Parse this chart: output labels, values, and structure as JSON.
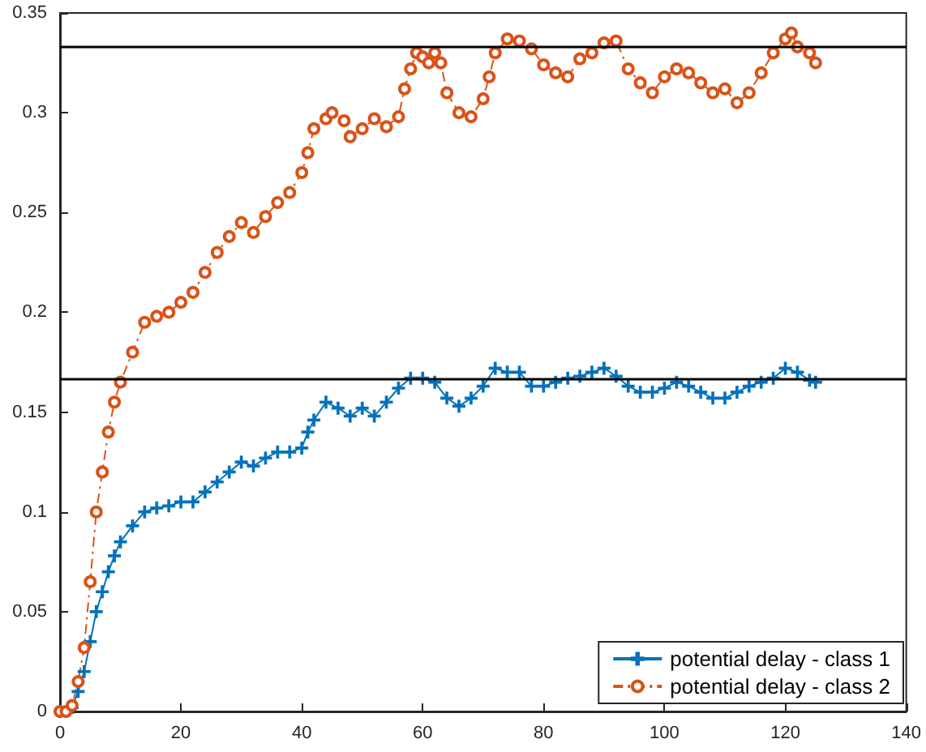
{
  "chart_data": {
    "type": "line",
    "xlim": [
      0,
      140
    ],
    "xticks": [
      0,
      20,
      40,
      60,
      80,
      100,
      120,
      140
    ],
    "ylim": [
      0,
      0.35
    ],
    "yticks": [
      0,
      0.05,
      0.1,
      0.15,
      0.2,
      0.25,
      0.3,
      0.35
    ],
    "grid": false,
    "legend": "bottom right",
    "series": [
      {
        "name": "potential delay - class 1",
        "color": "#0072bd",
        "marker": "cross",
        "line_style": "solid",
        "x": [
          0,
          2,
          3,
          4,
          5,
          6,
          7,
          8,
          9,
          10,
          12,
          14,
          16,
          18,
          20,
          22,
          24,
          26,
          28,
          30,
          32,
          34,
          36,
          38,
          40,
          41,
          42,
          44,
          46,
          48,
          50,
          52,
          54,
          56,
          58,
          60,
          62,
          64,
          66,
          68,
          70,
          72,
          74,
          76,
          78,
          80,
          82,
          84,
          86,
          88,
          90,
          92,
          94,
          96,
          98,
          100,
          102,
          104,
          106,
          108,
          110,
          112,
          114,
          116,
          118,
          120,
          122,
          124,
          125
        ],
        "values": [
          0,
          0.002,
          0.01,
          0.02,
          0.035,
          0.05,
          0.06,
          0.07,
          0.078,
          0.085,
          0.093,
          0.1,
          0.102,
          0.103,
          0.105,
          0.105,
          0.11,
          0.115,
          0.12,
          0.125,
          0.123,
          0.127,
          0.13,
          0.13,
          0.132,
          0.14,
          0.146,
          0.155,
          0.152,
          0.148,
          0.152,
          0.148,
          0.155,
          0.162,
          0.167,
          0.167,
          0.165,
          0.157,
          0.153,
          0.157,
          0.163,
          0.172,
          0.17,
          0.17,
          0.163,
          0.163,
          0.165,
          0.167,
          0.168,
          0.17,
          0.172,
          0.168,
          0.163,
          0.16,
          0.16,
          0.162,
          0.165,
          0.163,
          0.16,
          0.157,
          0.157,
          0.16,
          0.163,
          0.165,
          0.167,
          0.172,
          0.17,
          0.166,
          0.165
        ]
      },
      {
        "name": "potential delay - class 2",
        "color": "#d95319",
        "marker": "circle",
        "line_style": "dashed",
        "x": [
          0,
          1,
          2,
          3,
          4,
          5,
          6,
          7,
          8,
          9,
          10,
          12,
          14,
          16,
          18,
          20,
          22,
          24,
          26,
          28,
          30,
          32,
          34,
          36,
          38,
          40,
          41,
          42,
          44,
          45,
          47,
          48,
          50,
          52,
          54,
          56,
          57,
          58,
          59,
          60,
          61,
          62,
          63,
          64,
          66,
          68,
          70,
          71,
          72,
          74,
          76,
          78,
          80,
          82,
          84,
          86,
          88,
          90,
          92,
          94,
          96,
          98,
          100,
          102,
          104,
          106,
          108,
          110,
          112,
          114,
          116,
          118,
          120,
          121,
          122,
          124,
          125
        ],
        "values": [
          0,
          0,
          0.003,
          0.015,
          0.032,
          0.065,
          0.1,
          0.12,
          0.14,
          0.155,
          0.165,
          0.18,
          0.195,
          0.198,
          0.2,
          0.205,
          0.21,
          0.22,
          0.23,
          0.238,
          0.245,
          0.24,
          0.248,
          0.255,
          0.26,
          0.27,
          0.28,
          0.292,
          0.297,
          0.3,
          0.296,
          0.288,
          0.292,
          0.297,
          0.293,
          0.298,
          0.312,
          0.322,
          0.33,
          0.328,
          0.325,
          0.33,
          0.325,
          0.31,
          0.3,
          0.298,
          0.307,
          0.318,
          0.33,
          0.337,
          0.336,
          0.332,
          0.324,
          0.32,
          0.318,
          0.327,
          0.33,
          0.335,
          0.336,
          0.322,
          0.315,
          0.31,
          0.318,
          0.322,
          0.32,
          0.315,
          0.31,
          0.312,
          0.305,
          0.31,
          0.32,
          0.33,
          0.337,
          0.34,
          0.333,
          0.33,
          0.325
        ]
      }
    ],
    "ref_lines": [
      {
        "axis": "y",
        "value": 0.333,
        "color": "#000000"
      },
      {
        "axis": "y",
        "value": 0.167,
        "color": "#000000"
      }
    ]
  }
}
